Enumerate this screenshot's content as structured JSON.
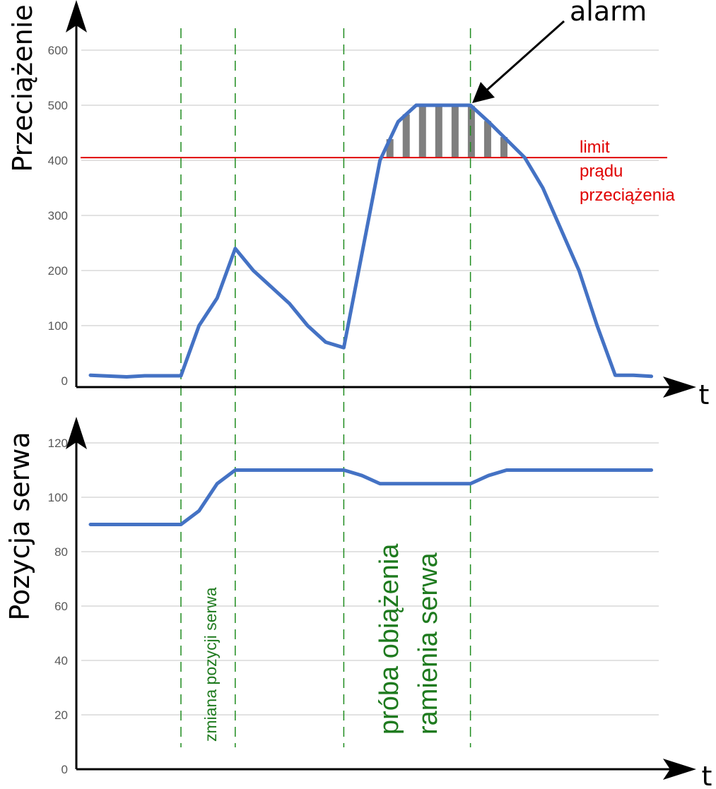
{
  "colors": {
    "line": "#4472c4",
    "grid": "#d9d9d9",
    "limit": "#e00000",
    "marker": "#1e8c1e",
    "hatch": "#7f7f7f",
    "axis": "#000000",
    "tick_text": "#595959",
    "annotation_green": "#1e7a1e"
  },
  "chart_data": [
    {
      "type": "line",
      "ylabel": "Przeciążenie",
      "xlabel": "t",
      "ylim": [
        0,
        600
      ],
      "xlim": [
        0,
        31.5
      ],
      "yticks": [
        0,
        100,
        200,
        300,
        400,
        500,
        600
      ],
      "grid": true,
      "x": [
        0,
        2,
        3,
        5,
        6,
        7,
        8,
        9,
        11,
        12,
        13,
        14,
        16,
        17,
        18,
        19,
        21,
        22,
        24,
        25,
        27,
        28,
        29,
        30,
        31
      ],
      "values": [
        10,
        7,
        9,
        9,
        100,
        150,
        240,
        200,
        140,
        100,
        70,
        60,
        400,
        470,
        500,
        500,
        500,
        470,
        405,
        350,
        200,
        100,
        10,
        10,
        8
      ],
      "limit": {
        "value": 405,
        "label_lines": [
          "limit",
          "prądu",
          "przeciążenia"
        ]
      },
      "alarm": {
        "label": "alarm",
        "x": 21,
        "y": 500
      },
      "hatched_region": {
        "x_start": 16,
        "x_end": 23.5,
        "y_from": 405
      }
    },
    {
      "type": "line",
      "ylabel": "Pozycja serwa",
      "xlabel": "t",
      "ylim": [
        0,
        120
      ],
      "xlim": [
        0,
        31.5
      ],
      "yticks": [
        0,
        20,
        40,
        60,
        80,
        100,
        120
      ],
      "grid": true,
      "x": [
        0,
        5,
        6,
        7,
        8,
        14,
        15,
        16,
        21,
        22,
        23,
        31
      ],
      "values": [
        90,
        90,
        95,
        105,
        110,
        110,
        108,
        105,
        105,
        108,
        110,
        110
      ],
      "annotations": [
        {
          "lines": [
            "zmiana pozycji serwa"
          ],
          "x": 7
        },
        {
          "lines": [
            "próba obiążenia",
            "ramienia serwa"
          ],
          "x": 18
        }
      ]
    }
  ],
  "event_markers_x": [
    5,
    8,
    14,
    21
  ]
}
